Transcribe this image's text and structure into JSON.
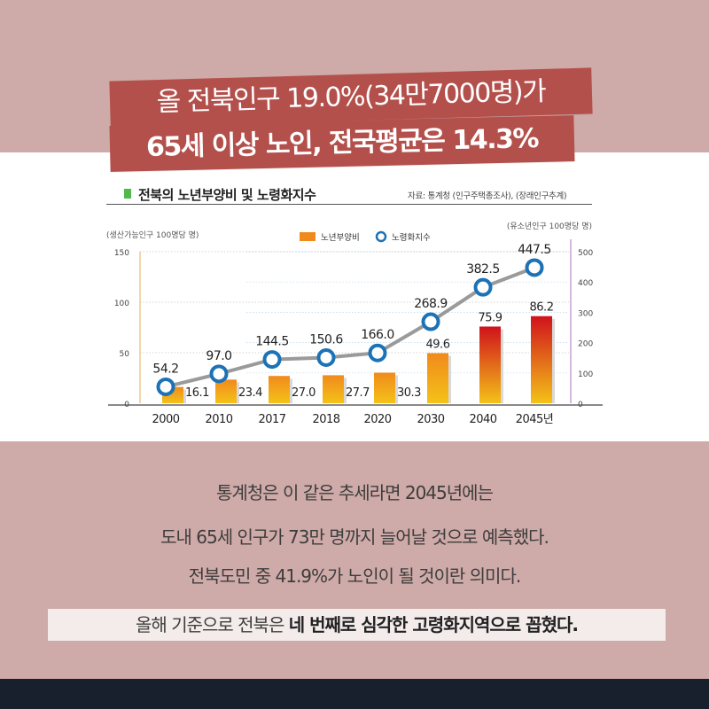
{
  "headline": {
    "line1": "올 전북인구 19.0%(34만7000명)가",
    "line2": "65세 이상 노인, 전국평균은 14.3%"
  },
  "chart_data": {
    "type": "bar",
    "title": "전북의 노년부양비 및 노령화지수",
    "source": "자료: 통계청 (인구주택총조사), (장래인구추계)",
    "categories": [
      "2000",
      "2010",
      "2017",
      "2018",
      "2020",
      "2030",
      "2040",
      "2045년"
    ],
    "left_axis": {
      "label": "(생산가능인구 100명당 명)",
      "ticks": [
        "0",
        "50",
        "100",
        "150"
      ],
      "range": [
        0,
        150
      ]
    },
    "right_axis": {
      "label": "(유소년인구 100명당 명)",
      "ticks": [
        "0",
        "100",
        "200",
        "300",
        "400",
        "500"
      ],
      "range": [
        0,
        500
      ]
    },
    "legend": {
      "position": "top-center",
      "items": [
        "노년부양비",
        "노령화지수"
      ]
    },
    "series": [
      {
        "name": "노년부양비",
        "type": "bar",
        "axis": "left",
        "values": [
          16.1,
          23.4,
          27.0,
          27.7,
          30.3,
          49.6,
          75.9,
          86.2
        ],
        "labels": [
          "16.1",
          "23.4",
          "27.0",
          "27.7",
          "30.3",
          "49.6",
          "75.9",
          "86.2"
        ]
      },
      {
        "name": "노령화지수",
        "type": "line",
        "axis": "right",
        "values": [
          54.2,
          97.0,
          144.5,
          150.6,
          166.0,
          268.9,
          382.5,
          447.5
        ],
        "labels": [
          "54.2",
          "97.0",
          "144.5",
          "150.6",
          "166.0",
          "268.9",
          "382.5",
          "447.5"
        ]
      }
    ],
    "colors": {
      "bar_low": "#f4c218",
      "bar_mid": "#f08a1c",
      "bar_high": "#d0121c",
      "line": "#9a9a9a",
      "marker": "#1c72b6"
    }
  },
  "body": {
    "line1": "통계청은 이 같은 추세라면 2045년에는",
    "line2": "도내 65세 인구가 73만 명까지 늘어날 것으로 예측했다.",
    "line3": "전북도민 중 41.9%가 노인이 될 것이란 의미다."
  },
  "closing": {
    "plain": "올해 기준으로 전북은 ",
    "bold": "네 번째로 심각한 고령화지역으로 꼽혔다."
  },
  "colors": {
    "background": "#ceaaa8",
    "banner": "#b3504c",
    "footer": "#17202c"
  }
}
